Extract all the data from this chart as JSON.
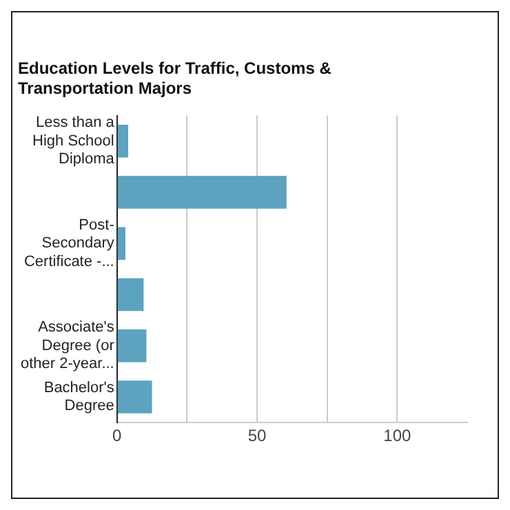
{
  "chart_data": {
    "type": "bar",
    "orientation": "horizontal",
    "title": "Education Levels for Traffic, Customs & Transportation Majors",
    "categories": [
      "Less than a High School Diploma",
      null,
      "Post-Secondary Certificate -...",
      null,
      "Associate's Degree (or other 2-year...",
      "Bachelor's Degree"
    ],
    "values": [
      4,
      60.5,
      3,
      9.5,
      10.5,
      12.5
    ],
    "color": "#5ba3bf",
    "xlim": [
      0,
      125
    ],
    "xticks": [
      0,
      {
        "value": 25,
        "label": null
      },
      50,
      {
        "value": 75,
        "label": null
      },
      100
    ],
    "grid": "x",
    "legend": false
  }
}
